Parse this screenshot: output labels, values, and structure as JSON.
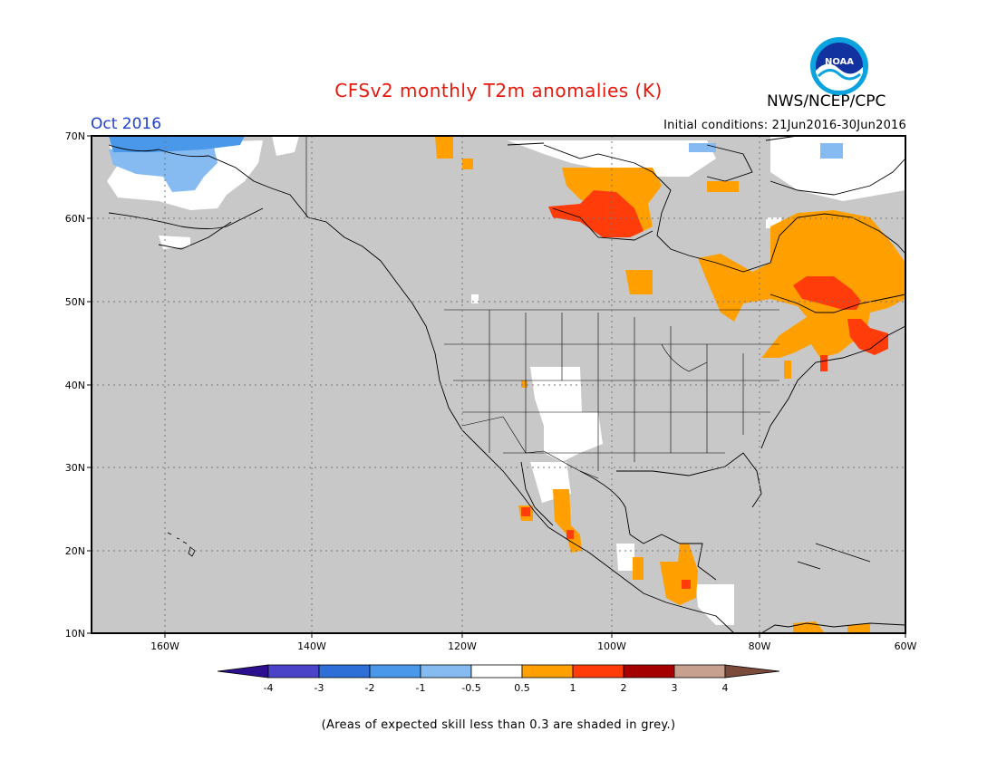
{
  "header": {
    "title": "CFSv2 monthly T2m anomalies (K)",
    "month": "Oct 2016",
    "agency": "NWS/NCEP/CPC",
    "initial_conditions": "Initial conditions: 21Jun2016-30Jun2016"
  },
  "map": {
    "lon_ticks": [
      "160W",
      "140W",
      "120W",
      "100W",
      "80W",
      "60W"
    ],
    "lat_ticks": [
      "70N",
      "60N",
      "50N",
      "40N",
      "30N",
      "20N",
      "10N"
    ],
    "lon_range": [
      -172,
      -60
    ],
    "lat_range": [
      10,
      70
    ],
    "background_color": "#c8c8c8"
  },
  "colorbar": {
    "labels": [
      "-4",
      "-3",
      "-2",
      "-1",
      "-0.5",
      "0.5",
      "1",
      "2",
      "3",
      "4"
    ],
    "colors": [
      "#2b0f8e",
      "#4b43c8",
      "#2d6fd6",
      "#4a98ea",
      "#86bbf2",
      "#ffffff",
      "#ffa000",
      "#ff3c0a",
      "#a50000",
      "#c8a090",
      "#7a4a3a"
    ]
  },
  "footnote": "(Areas of expected skill less than 0.3 are shaded in grey.)"
}
